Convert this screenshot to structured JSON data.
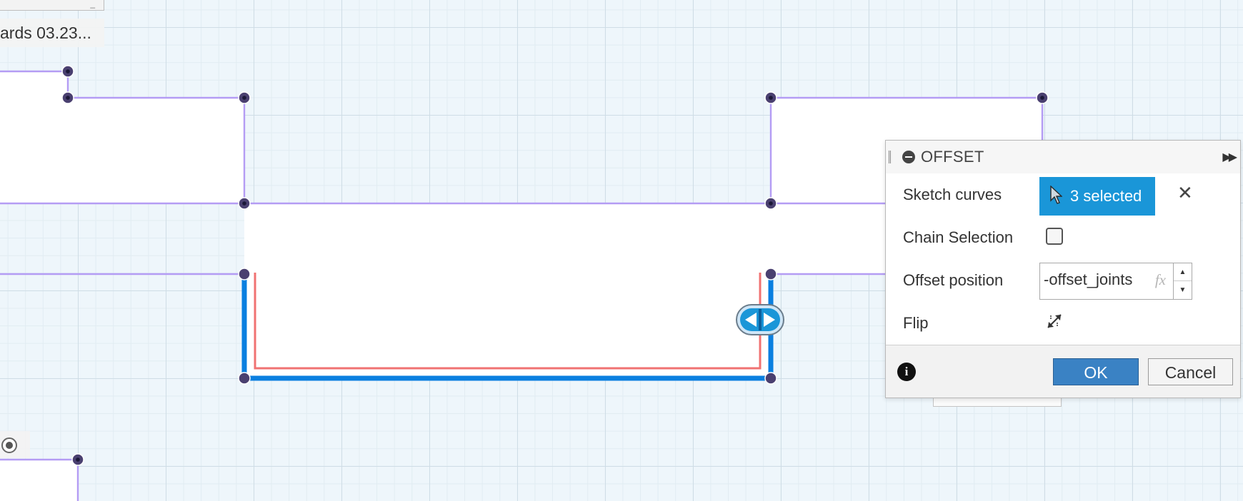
{
  "document": {
    "tab_mini_label": "_",
    "label": "ards 03.23..."
  },
  "canvas": {
    "colors": {
      "sketch_line": "#b49cf4",
      "selected_curve": "#0a7fe0",
      "offset_preview": "#f07272",
      "point": "#4a4070",
      "grid_major": "#cfdde6",
      "grid_minor": "#e1ecf2",
      "background": "#eef6fb"
    }
  },
  "dialog": {
    "title": "OFFSET",
    "rows": {
      "sketch_curves": {
        "label": "Sketch curves",
        "value": "3 selected"
      },
      "chain_selection": {
        "label": "Chain Selection",
        "checked": false
      },
      "offset_position": {
        "label": "Offset position",
        "value": "-offset_joints",
        "fx": "fx"
      },
      "flip": {
        "label": "Flip"
      }
    },
    "footer": {
      "info": "i",
      "ok_label": "OK",
      "cancel_label": "Cancel"
    },
    "icons": {
      "collapse": "minus-circle-icon",
      "expand": "double-arrow-right-icon",
      "clear": "close-icon",
      "cursor": "cursor-icon",
      "flip": "flip-icon",
      "info": "info-icon"
    }
  }
}
